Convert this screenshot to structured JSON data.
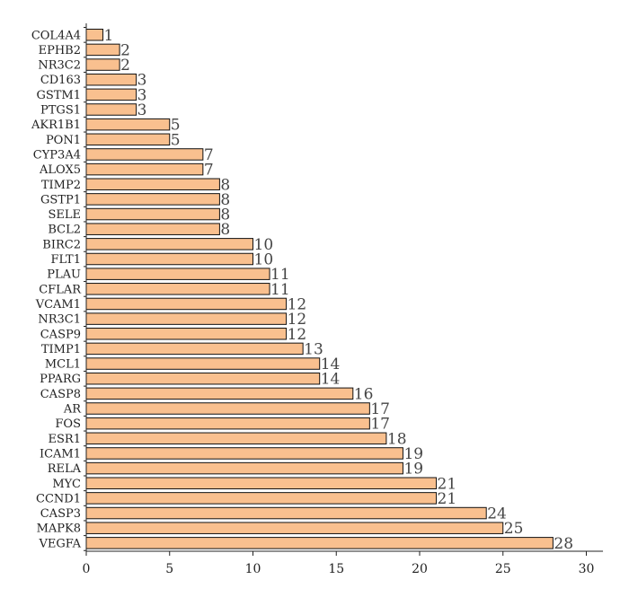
{
  "chart_data": {
    "type": "bar",
    "orientation": "horizontal",
    "categories": [
      "COL4A4",
      "EPHB2",
      "NR3C2",
      "CD163",
      "GSTM1",
      "PTGS1",
      "AKR1B1",
      "PON1",
      "CYP3A4",
      "ALOX5",
      "TIMP2",
      "GSTP1",
      "SELE",
      "BCL2",
      "BIRC2",
      "FLT1",
      "PLAU",
      "CFLAR",
      "VCAM1",
      "NR3C1",
      "CASP9",
      "TIMP1",
      "MCL1",
      "PPARG",
      "CASP8",
      "AR",
      "FOS",
      "ESR1",
      "ICAM1",
      "RELA",
      "MYC",
      "CCND1",
      "CASP3",
      "MAPK8",
      "VEGFA"
    ],
    "values": [
      1,
      2,
      2,
      3,
      3,
      3,
      5,
      5,
      7,
      7,
      8,
      8,
      8,
      8,
      10,
      10,
      11,
      11,
      12,
      12,
      12,
      13,
      14,
      14,
      16,
      17,
      17,
      18,
      19,
      19,
      21,
      21,
      24,
      25,
      28
    ],
    "xlim": [
      0,
      31
    ],
    "xticks": [
      0,
      5,
      10,
      15,
      20,
      25,
      30
    ],
    "bar_color": "#f9c08f",
    "grid": false,
    "data_labels": true
  }
}
